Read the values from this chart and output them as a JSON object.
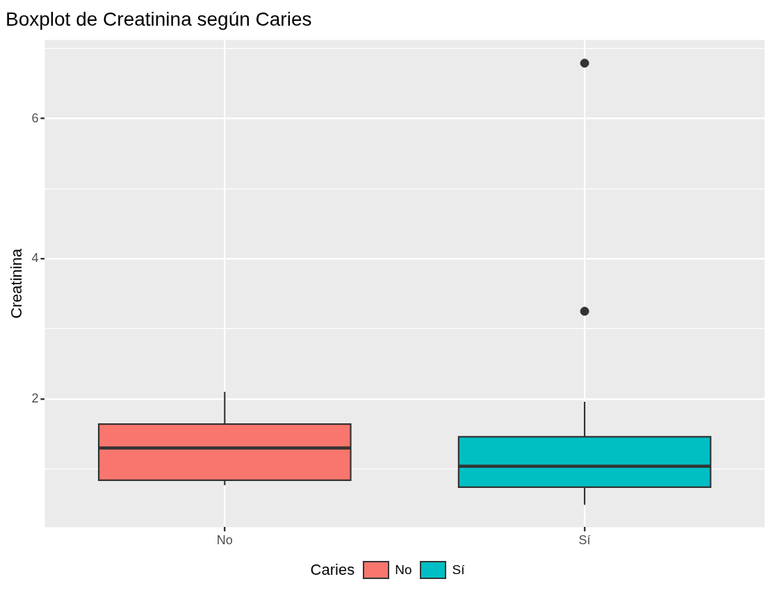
{
  "chart_data": {
    "type": "box",
    "title": "Boxplot de Creatinina según Caries",
    "ylabel": "Creatinina",
    "legend_title": "Caries",
    "legend": "bottom",
    "grid": true,
    "categories": [
      "No",
      "Sí"
    ],
    "series": [
      {
        "name": "No",
        "color": "#f8766d",
        "boxes": [
          {
            "low": 0.77,
            "q1": 0.84,
            "median": 1.3,
            "q3": 1.64,
            "high": 2.1
          },
          null
        ]
      },
      {
        "name": "Sí",
        "color": "#00bfc4",
        "boxes": [
          null,
          {
            "low": 0.49,
            "q1": 0.74,
            "median": 1.04,
            "q3": 1.46,
            "high": 1.96,
            "outliers": [
              3.25,
              6.79
            ]
          }
        ]
      }
    ],
    "ylim": [
      0.17,
      7.12
    ],
    "yticks": [
      {
        "value": 1,
        "label": null
      },
      2,
      {
        "value": 3,
        "label": null
      },
      4,
      {
        "value": 5,
        "label": null
      },
      6,
      {
        "value": 7,
        "label": null
      }
    ]
  }
}
